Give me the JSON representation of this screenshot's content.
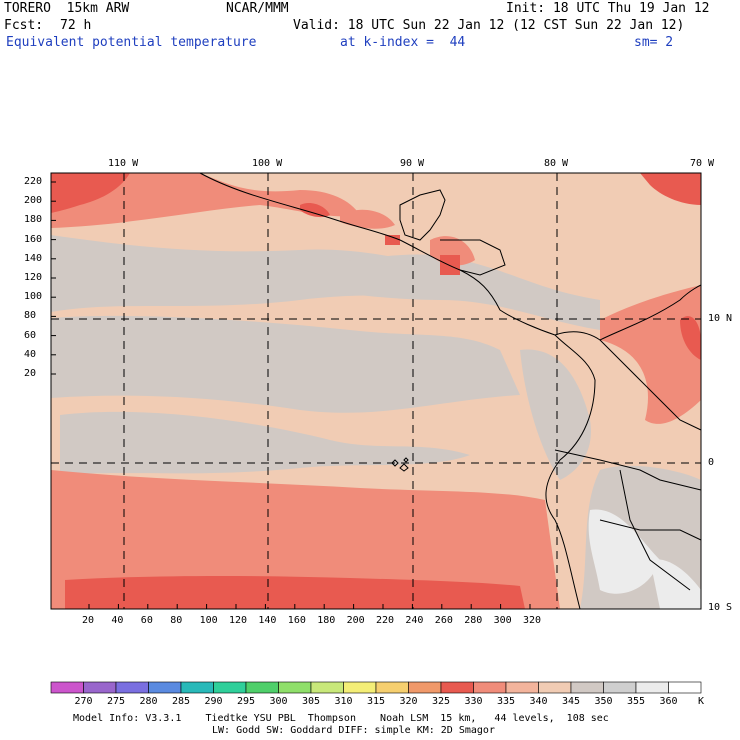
{
  "header": {
    "model": "TORERO  15km ARW",
    "center": "NCAR/MMM",
    "init": "Init: 18 UTC Thu 19 Jan 12",
    "fcst_label": "Fcst:",
    "fcst_value": "72 h",
    "valid": "Valid: 18 UTC Sun 22 Jan 12 (12 CST Sun 22 Jan 12)",
    "field": "Equivalent potential temperature",
    "level": "at k-index =  44",
    "smoothing": "sm= 2"
  },
  "map": {
    "lon_labels": [
      "110 W",
      "100 W",
      "90 W",
      "80 W",
      "70 W"
    ],
    "lat_labels": [
      "10 N",
      "0",
      "10 S"
    ],
    "y_ticks": [
      "220",
      "200",
      "180",
      "160",
      "140",
      "120",
      "100",
      "80",
      "60",
      "40",
      "20"
    ],
    "x_ticks": [
      "20",
      "40",
      "60",
      "80",
      "100",
      "120",
      "140",
      "160",
      "180",
      "200",
      "220",
      "240",
      "260",
      "280",
      "300",
      "320"
    ]
  },
  "colorbar": {
    "levels": [
      "270",
      "275",
      "280",
      "285",
      "290",
      "295",
      "300",
      "305",
      "310",
      "315",
      "320",
      "325",
      "330",
      "335",
      "340",
      "345",
      "350",
      "355",
      "360"
    ],
    "unit": "K",
    "colors": [
      "#cc55cc",
      "#9966cc",
      "#7a6fe0",
      "#5a8ae0",
      "#29b9b9",
      "#2fcf9a",
      "#4fcf6a",
      "#8fdf6a",
      "#c8e87a",
      "#f4ee77",
      "#f6cf6f",
      "#f0996a",
      "#e85a50",
      "#f08c7a",
      "#f3b49c",
      "#f1ccb4",
      "#d1c9c4",
      "#cfcfcf",
      "#ececec",
      "#ffffff"
    ]
  },
  "footer": {
    "line1": "Model Info: V3.3.1    Tiedtke YSU PBL  Thompson    Noah LSM  15 km,   44 levels,  108 sec",
    "line2": "LW: Godd SW: Goddard DIFF: simple KM: 2D Smagor"
  }
}
